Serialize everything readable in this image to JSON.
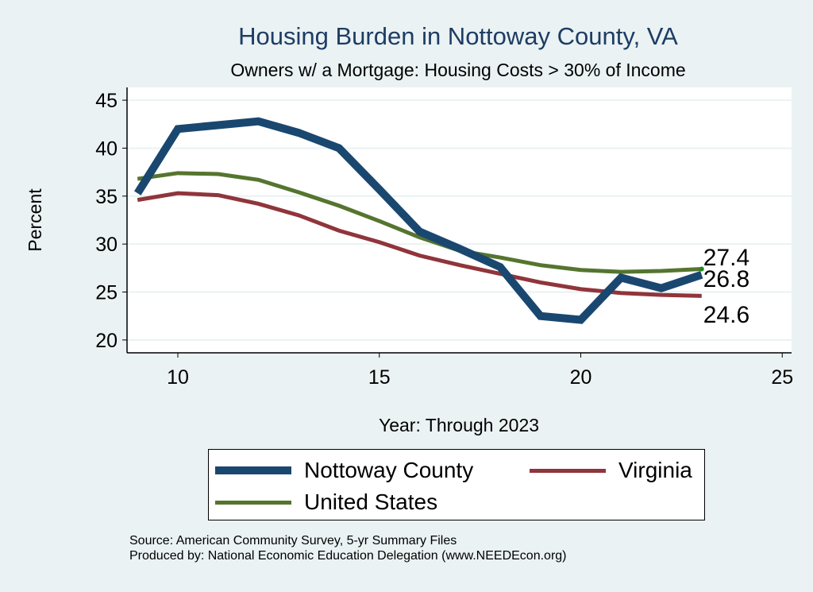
{
  "chart_data": {
    "type": "line",
    "title": "Housing Burden in Nottoway County, VA",
    "subtitle": "Owners w/ a Mortgage: Housing Costs > 30% of Income",
    "xlabel": "Year: Through 2023",
    "ylabel": "Percent",
    "xlim": [
      8.7,
      25.3
    ],
    "ylim": [
      19.4,
      46.3
    ],
    "xticks": [
      10,
      15,
      20,
      25
    ],
    "yticks": [
      20,
      25,
      30,
      35,
      40,
      45
    ],
    "grid": true,
    "legend_position": "bottom",
    "x": [
      9,
      10,
      11,
      12,
      13,
      14,
      15,
      16,
      17,
      18,
      19,
      20,
      21,
      22,
      23
    ],
    "series": [
      {
        "name": "Nottoway County",
        "color": "#1a476f",
        "values": [
          35.3,
          42.0,
          42.4,
          42.8,
          41.6,
          40.0,
          35.7,
          31.3,
          29.5,
          27.6,
          22.5,
          22.1,
          26.5,
          25.4,
          26.8
        ],
        "end_label": "26.8"
      },
      {
        "name": "Virginia",
        "color": "#90353b",
        "values": [
          34.6,
          35.3,
          35.1,
          34.2,
          33.0,
          31.4,
          30.2,
          28.8,
          27.8,
          26.9,
          26.0,
          25.3,
          24.9,
          24.7,
          24.6
        ],
        "end_label": "24.6"
      },
      {
        "name": "United States",
        "color": "#55752f",
        "values": [
          36.8,
          37.4,
          37.3,
          36.7,
          35.4,
          34.0,
          32.4,
          30.7,
          29.3,
          28.6,
          27.8,
          27.3,
          27.1,
          27.2,
          27.4
        ],
        "end_label": "27.4"
      }
    ]
  },
  "notes": {
    "source": "Source: American Community Survey, 5-yr Summary Files",
    "produced": "Produced by: National Economic Education Delegation (www.NEEDEcon.org)"
  }
}
